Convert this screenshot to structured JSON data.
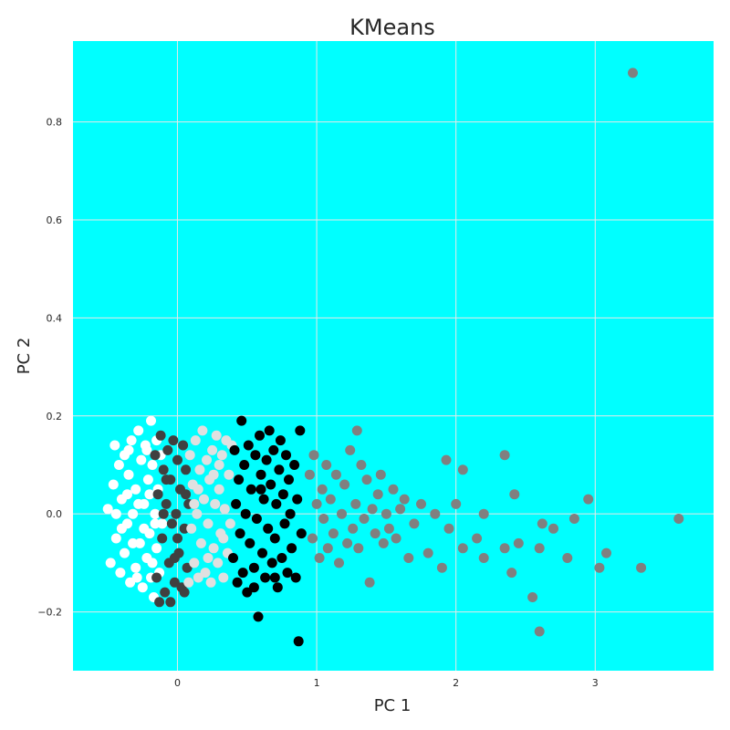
{
  "chart_data": {
    "type": "scatter",
    "title": "KMeans",
    "xlabel": "PC 1",
    "ylabel": "PC 2",
    "xlim": [
      -0.75,
      3.85
    ],
    "ylim": [
      -0.32,
      0.965
    ],
    "xticks": [
      0,
      1,
      2,
      3
    ],
    "yticks": [
      -0.2,
      0.0,
      0.2,
      0.4,
      0.6,
      0.8
    ],
    "xtick_labels": [
      "0",
      "1",
      "2",
      "3"
    ],
    "ytick_labels": [
      "−0.2",
      "0.0",
      "0.2",
      "0.4",
      "0.6",
      "0.8"
    ],
    "grid": true,
    "background_color": "#00ffff",
    "series": [
      {
        "color": "#ffffff",
        "points": [
          [
            -0.5,
            0.01
          ],
          [
            -0.48,
            -0.1
          ],
          [
            -0.45,
            0.14
          ],
          [
            -0.46,
            0.06
          ],
          [
            -0.44,
            -0.05
          ],
          [
            -0.42,
            0.1
          ],
          [
            -0.41,
            -0.12
          ],
          [
            -0.4,
            0.03
          ],
          [
            -0.38,
            0.12
          ],
          [
            -0.38,
            -0.08
          ],
          [
            -0.36,
            -0.02
          ],
          [
            -0.35,
            0.08
          ],
          [
            -0.34,
            -0.14
          ],
          [
            -0.33,
            0.15
          ],
          [
            -0.32,
            0.0
          ],
          [
            -0.3,
            -0.11
          ],
          [
            -0.3,
            0.05
          ],
          [
            -0.28,
            0.17
          ],
          [
            -0.27,
            -0.06
          ],
          [
            -0.26,
            0.11
          ],
          [
            -0.25,
            -0.15
          ],
          [
            -0.24,
            0.02
          ],
          [
            -0.23,
            0.14
          ],
          [
            -0.22,
            -0.09
          ],
          [
            -0.21,
            0.07
          ],
          [
            -0.2,
            -0.04
          ],
          [
            -0.19,
            0.19
          ],
          [
            -0.19,
            -0.13
          ],
          [
            -0.18,
            0.1
          ],
          [
            -0.17,
            -0.17
          ],
          [
            -0.16,
            0.0
          ],
          [
            -0.15,
            0.15
          ],
          [
            -0.15,
            -0.07
          ],
          [
            -0.14,
            0.05
          ],
          [
            -0.13,
            -0.12
          ],
          [
            -0.12,
            0.12
          ],
          [
            -0.11,
            -0.02
          ],
          [
            -0.1,
            0.09
          ],
          [
            -0.44,
            0.0
          ],
          [
            -0.4,
            -0.03
          ],
          [
            -0.36,
            0.04
          ],
          [
            -0.32,
            -0.06
          ],
          [
            -0.28,
            0.02
          ],
          [
            -0.24,
            -0.03
          ],
          [
            -0.2,
            0.04
          ],
          [
            -0.16,
            -0.02
          ],
          [
            -0.35,
            0.13
          ],
          [
            -0.29,
            -0.13
          ],
          [
            -0.22,
            0.13
          ],
          [
            -0.18,
            -0.1
          ]
        ]
      },
      {
        "color": "#404040",
        "points": [
          [
            -0.16,
            0.12
          ],
          [
            -0.15,
            -0.13
          ],
          [
            -0.14,
            0.04
          ],
          [
            -0.13,
            -0.18
          ],
          [
            -0.12,
            0.16
          ],
          [
            -0.11,
            -0.05
          ],
          [
            -0.1,
            0.09
          ],
          [
            -0.09,
            -0.16
          ],
          [
            -0.08,
            0.02
          ],
          [
            -0.07,
            0.13
          ],
          [
            -0.06,
            -0.1
          ],
          [
            -0.05,
            0.07
          ],
          [
            -0.04,
            -0.02
          ],
          [
            -0.03,
            0.15
          ],
          [
            -0.02,
            -0.14
          ],
          [
            -0.01,
            0.0
          ],
          [
            0.0,
            0.11
          ],
          [
            0.01,
            -0.08
          ],
          [
            0.02,
            0.05
          ],
          [
            0.03,
            -0.15
          ],
          [
            0.04,
            0.14
          ],
          [
            0.05,
            -0.03
          ],
          [
            0.06,
            0.09
          ],
          [
            0.07,
            -0.11
          ],
          [
            0.08,
            0.02
          ],
          [
            0.05,
            -0.16
          ],
          [
            -0.05,
            -0.18
          ],
          [
            -0.1,
            0.0
          ],
          [
            0.0,
            -0.05
          ],
          [
            0.06,
            0.04
          ],
          [
            -0.08,
            0.07
          ],
          [
            -0.02,
            -0.09
          ]
        ]
      },
      {
        "color": "#e0e0e0",
        "points": [
          [
            0.08,
            -0.14
          ],
          [
            0.09,
            0.12
          ],
          [
            0.1,
            -0.03
          ],
          [
            0.11,
            0.06
          ],
          [
            0.12,
            -0.1
          ],
          [
            0.13,
            0.15
          ],
          [
            0.14,
            0.0
          ],
          [
            0.15,
            -0.13
          ],
          [
            0.16,
            0.09
          ],
          [
            0.17,
            -0.06
          ],
          [
            0.18,
            0.17
          ],
          [
            0.19,
            0.03
          ],
          [
            0.2,
            -0.12
          ],
          [
            0.21,
            0.11
          ],
          [
            0.22,
            -0.02
          ],
          [
            0.23,
            0.07
          ],
          [
            0.24,
            -0.14
          ],
          [
            0.25,
            0.13
          ],
          [
            0.26,
            -0.07
          ],
          [
            0.27,
            0.02
          ],
          [
            0.28,
            0.16
          ],
          [
            0.29,
            -0.1
          ],
          [
            0.3,
            0.05
          ],
          [
            0.31,
            -0.04
          ],
          [
            0.32,
            0.12
          ],
          [
            0.33,
            -0.13
          ],
          [
            0.34,
            0.01
          ],
          [
            0.35,
            0.15
          ],
          [
            0.36,
            -0.08
          ],
          [
            0.37,
            0.08
          ],
          [
            0.38,
            -0.02
          ],
          [
            0.39,
            0.14
          ],
          [
            0.15,
            0.05
          ],
          [
            0.22,
            -0.09
          ],
          [
            0.3,
            0.1
          ],
          [
            0.12,
            0.02
          ],
          [
            0.26,
            0.08
          ],
          [
            0.33,
            -0.05
          ]
        ]
      },
      {
        "color": "#000000",
        "points": [
          [
            0.4,
            -0.09
          ],
          [
            0.41,
            0.13
          ],
          [
            0.42,
            0.02
          ],
          [
            0.43,
            -0.14
          ],
          [
            0.44,
            0.07
          ],
          [
            0.45,
            -0.04
          ],
          [
            0.46,
            0.19
          ],
          [
            0.47,
            -0.12
          ],
          [
            0.48,
            0.1
          ],
          [
            0.49,
            0.0
          ],
          [
            0.5,
            -0.16
          ],
          [
            0.51,
            0.14
          ],
          [
            0.52,
            -0.06
          ],
          [
            0.53,
            0.05
          ],
          [
            0.55,
            -0.11
          ],
          [
            0.56,
            0.12
          ],
          [
            0.57,
            -0.01
          ],
          [
            0.58,
            -0.21
          ],
          [
            0.59,
            0.16
          ],
          [
            0.6,
            0.08
          ],
          [
            0.61,
            -0.08
          ],
          [
            0.62,
            0.03
          ],
          [
            0.63,
            -0.13
          ],
          [
            0.64,
            0.11
          ],
          [
            0.65,
            -0.03
          ],
          [
            0.66,
            0.17
          ],
          [
            0.67,
            0.06
          ],
          [
            0.68,
            -0.1
          ],
          [
            0.69,
            0.13
          ],
          [
            0.7,
            -0.05
          ],
          [
            0.71,
            0.02
          ],
          [
            0.72,
            -0.15
          ],
          [
            0.73,
            0.09
          ],
          [
            0.74,
            0.15
          ],
          [
            0.75,
            -0.09
          ],
          [
            0.76,
            0.04
          ],
          [
            0.77,
            -0.02
          ],
          [
            0.78,
            0.12
          ],
          [
            0.79,
            -0.12
          ],
          [
            0.8,
            0.07
          ],
          [
            0.81,
            0.0
          ],
          [
            0.82,
            -0.07
          ],
          [
            0.84,
            0.1
          ],
          [
            0.85,
            -0.13
          ],
          [
            0.86,
            0.03
          ],
          [
            0.87,
            -0.26
          ],
          [
            0.88,
            0.17
          ],
          [
            0.89,
            -0.04
          ],
          [
            0.55,
            -0.15
          ],
          [
            0.6,
            0.05
          ],
          [
            0.7,
            -0.13
          ]
        ]
      },
      {
        "color": "#808080",
        "points": [
          [
            0.95,
            0.08
          ],
          [
            0.97,
            -0.05
          ],
          [
            0.98,
            0.12
          ],
          [
            1.0,
            0.02
          ],
          [
            1.02,
            -0.09
          ],
          [
            1.04,
            0.05
          ],
          [
            1.05,
            -0.01
          ],
          [
            1.07,
            0.1
          ],
          [
            1.08,
            -0.07
          ],
          [
            1.1,
            0.03
          ],
          [
            1.12,
            -0.04
          ],
          [
            1.14,
            0.08
          ],
          [
            1.16,
            -0.1
          ],
          [
            1.18,
            0.0
          ],
          [
            1.2,
            0.06
          ],
          [
            1.22,
            -0.06
          ],
          [
            1.24,
            0.13
          ],
          [
            1.26,
            -0.03
          ],
          [
            1.28,
            0.02
          ],
          [
            1.29,
            0.17
          ],
          [
            1.3,
            -0.07
          ],
          [
            1.32,
            0.1
          ],
          [
            1.34,
            -0.01
          ],
          [
            1.36,
            0.07
          ],
          [
            1.38,
            -0.14
          ],
          [
            1.4,
            0.01
          ],
          [
            1.42,
            -0.04
          ],
          [
            1.44,
            0.04
          ],
          [
            1.46,
            0.08
          ],
          [
            1.48,
            -0.06
          ],
          [
            1.5,
            0.0
          ],
          [
            1.52,
            -0.03
          ],
          [
            1.55,
            0.05
          ],
          [
            1.57,
            -0.05
          ],
          [
            1.6,
            0.01
          ],
          [
            1.63,
            0.03
          ],
          [
            1.66,
            -0.09
          ],
          [
            1.7,
            -0.02
          ],
          [
            1.75,
            0.02
          ],
          [
            1.8,
            -0.08
          ],
          [
            1.85,
            0.0
          ],
          [
            1.9,
            -0.11
          ],
          [
            1.93,
            0.11
          ],
          [
            1.95,
            -0.03
          ],
          [
            2.0,
            0.02
          ],
          [
            2.05,
            -0.07
          ],
          [
            2.05,
            0.09
          ],
          [
            2.15,
            -0.05
          ],
          [
            2.2,
            -0.09
          ],
          [
            2.2,
            0.0
          ],
          [
            2.35,
            0.12
          ],
          [
            2.35,
            -0.07
          ],
          [
            2.4,
            -0.12
          ],
          [
            2.42,
            0.04
          ],
          [
            2.45,
            -0.06
          ],
          [
            2.55,
            -0.17
          ],
          [
            2.6,
            -0.07
          ],
          [
            2.6,
            -0.24
          ],
          [
            2.62,
            -0.02
          ],
          [
            2.7,
            -0.03
          ],
          [
            2.8,
            -0.09
          ],
          [
            2.85,
            -0.01
          ],
          [
            2.95,
            0.03
          ],
          [
            3.03,
            -0.11
          ],
          [
            3.08,
            -0.08
          ],
          [
            3.27,
            0.9
          ],
          [
            3.33,
            -0.11
          ],
          [
            3.6,
            -0.01
          ]
        ]
      }
    ]
  }
}
